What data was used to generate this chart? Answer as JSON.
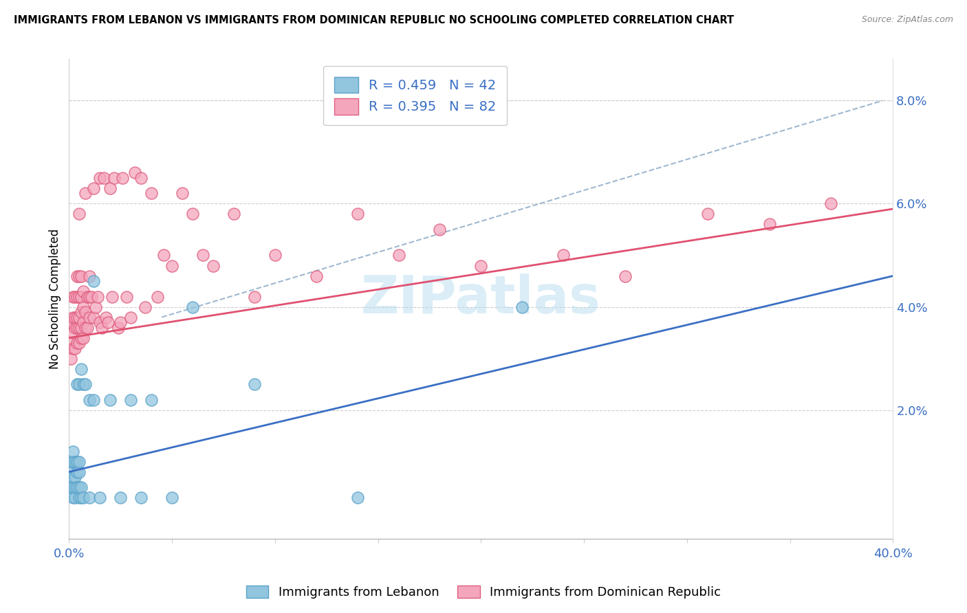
{
  "title": "IMMIGRANTS FROM LEBANON VS IMMIGRANTS FROM DOMINICAN REPUBLIC NO SCHOOLING COMPLETED CORRELATION CHART",
  "source": "Source: ZipAtlas.com",
  "ylabel": "No Schooling Completed",
  "ylabel_right_ticks": [
    "2.0%",
    "4.0%",
    "6.0%",
    "8.0%"
  ],
  "ylabel_right_vals": [
    0.02,
    0.04,
    0.06,
    0.08
  ],
  "legend_blue_R": "R = 0.459",
  "legend_blue_N": "N = 42",
  "legend_pink_R": "R = 0.395",
  "legend_pink_N": "N = 82",
  "legend_label_blue": "Immigrants from Lebanon",
  "legend_label_pink": "Immigrants from Dominican Republic",
  "blue_color": "#92c5de",
  "blue_edge_color": "#5ba3cb",
  "pink_color": "#f4a6bd",
  "pink_edge_color": "#e06080",
  "blue_line_color": "#3a6fc4",
  "pink_line_color": "#e05070",
  "dashed_line_color": "#a0b8d0",
  "watermark_color": "#b8ddf0",
  "xlim": [
    0.0,
    0.4
  ],
  "ylim": [
    -0.005,
    0.088
  ],
  "blue_trend": [
    0.0,
    0.4,
    0.008,
    0.046
  ],
  "pink_trend": [
    0.0,
    0.4,
    0.034,
    0.059
  ],
  "dashed_trend": [
    0.045,
    0.395,
    0.038,
    0.08
  ],
  "blue_scatter_x": [
    0.001,
    0.001,
    0.001,
    0.002,
    0.002,
    0.002,
    0.002,
    0.002,
    0.003,
    0.003,
    0.003,
    0.003,
    0.004,
    0.004,
    0.004,
    0.004,
    0.005,
    0.005,
    0.005,
    0.005,
    0.005,
    0.006,
    0.006,
    0.006,
    0.007,
    0.007,
    0.008,
    0.01,
    0.01,
    0.012,
    0.012,
    0.015,
    0.02,
    0.025,
    0.03,
    0.035,
    0.04,
    0.05,
    0.06,
    0.09,
    0.14,
    0.22
  ],
  "blue_scatter_y": [
    0.005,
    0.008,
    0.01,
    0.003,
    0.005,
    0.007,
    0.01,
    0.012,
    0.003,
    0.005,
    0.007,
    0.01,
    0.005,
    0.008,
    0.01,
    0.025,
    0.003,
    0.005,
    0.008,
    0.01,
    0.025,
    0.003,
    0.005,
    0.028,
    0.003,
    0.025,
    0.025,
    0.022,
    0.003,
    0.022,
    0.045,
    0.003,
    0.022,
    0.003,
    0.022,
    0.003,
    0.022,
    0.003,
    0.04,
    0.025,
    0.003,
    0.04
  ],
  "pink_scatter_x": [
    0.001,
    0.001,
    0.001,
    0.002,
    0.002,
    0.002,
    0.002,
    0.003,
    0.003,
    0.003,
    0.003,
    0.004,
    0.004,
    0.004,
    0.004,
    0.004,
    0.005,
    0.005,
    0.005,
    0.005,
    0.005,
    0.005,
    0.006,
    0.006,
    0.006,
    0.006,
    0.006,
    0.007,
    0.007,
    0.007,
    0.007,
    0.008,
    0.008,
    0.008,
    0.009,
    0.009,
    0.01,
    0.01,
    0.01,
    0.011,
    0.012,
    0.012,
    0.013,
    0.014,
    0.015,
    0.015,
    0.016,
    0.017,
    0.018,
    0.019,
    0.02,
    0.021,
    0.022,
    0.024,
    0.025,
    0.026,
    0.028,
    0.03,
    0.032,
    0.035,
    0.037,
    0.04,
    0.043,
    0.046,
    0.05,
    0.055,
    0.06,
    0.065,
    0.07,
    0.08,
    0.09,
    0.1,
    0.12,
    0.14,
    0.16,
    0.18,
    0.2,
    0.24,
    0.27,
    0.31,
    0.34,
    0.37
  ],
  "pink_scatter_y": [
    0.03,
    0.033,
    0.037,
    0.032,
    0.035,
    0.038,
    0.042,
    0.032,
    0.036,
    0.038,
    0.042,
    0.033,
    0.036,
    0.038,
    0.042,
    0.046,
    0.033,
    0.036,
    0.038,
    0.042,
    0.046,
    0.058,
    0.034,
    0.036,
    0.039,
    0.042,
    0.046,
    0.034,
    0.037,
    0.04,
    0.043,
    0.036,
    0.039,
    0.062,
    0.036,
    0.042,
    0.038,
    0.042,
    0.046,
    0.042,
    0.038,
    0.063,
    0.04,
    0.042,
    0.037,
    0.065,
    0.036,
    0.065,
    0.038,
    0.037,
    0.063,
    0.042,
    0.065,
    0.036,
    0.037,
    0.065,
    0.042,
    0.038,
    0.066,
    0.065,
    0.04,
    0.062,
    0.042,
    0.05,
    0.048,
    0.062,
    0.058,
    0.05,
    0.048,
    0.058,
    0.042,
    0.05,
    0.046,
    0.058,
    0.05,
    0.055,
    0.048,
    0.05,
    0.046,
    0.058,
    0.056,
    0.06
  ]
}
